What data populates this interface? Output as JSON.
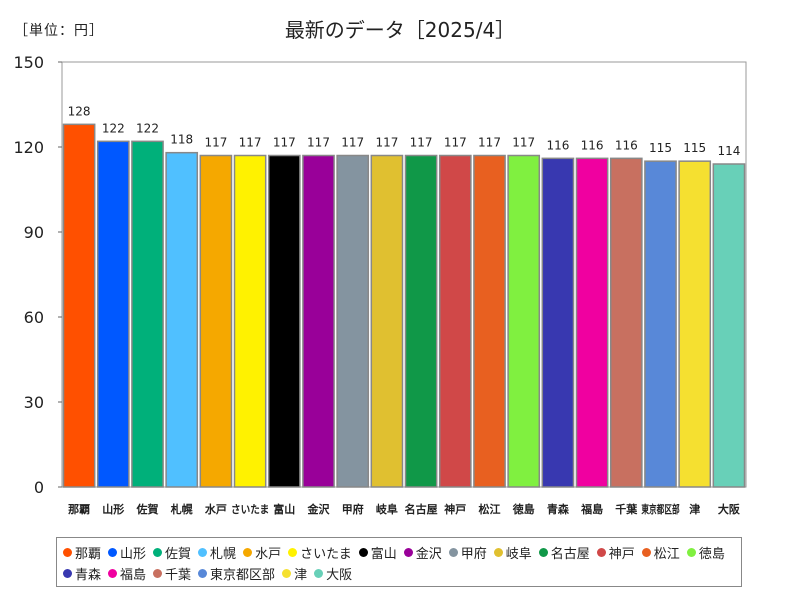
{
  "unit_label": "［単位：円］",
  "chart_data": {
    "type": "bar",
    "title": "最新のデータ［2025/4］",
    "ylim": [
      0,
      150
    ],
    "yticks": [
      0,
      30,
      60,
      90,
      120,
      150
    ],
    "grid": false,
    "legend_position": "bottom",
    "categories": [
      "那覇",
      "山形",
      "佐賀",
      "札幌",
      "水戸",
      "さいたま",
      "富山",
      "金沢",
      "甲府",
      "岐阜",
      "名古屋",
      "神戸",
      "松江",
      "徳島",
      "青森",
      "福島",
      "千葉",
      "東京都区部",
      "津",
      "大阪"
    ],
    "values": [
      128,
      122,
      122,
      118,
      117,
      117,
      117,
      117,
      117,
      117,
      117,
      117,
      117,
      117,
      116,
      116,
      116,
      115,
      115,
      114
    ],
    "colors": [
      "#ff5000",
      "#0058ff",
      "#00b07a",
      "#50c0ff",
      "#f5a800",
      "#fff200",
      "#000000",
      "#990099",
      "#8494a0",
      "#e0c030",
      "#109848",
      "#d04848",
      "#e86020",
      "#80f040",
      "#3838b0",
      "#f000a0",
      "#c87060",
      "#5888d8",
      "#f5e030",
      "#68d0b8"
    ]
  }
}
